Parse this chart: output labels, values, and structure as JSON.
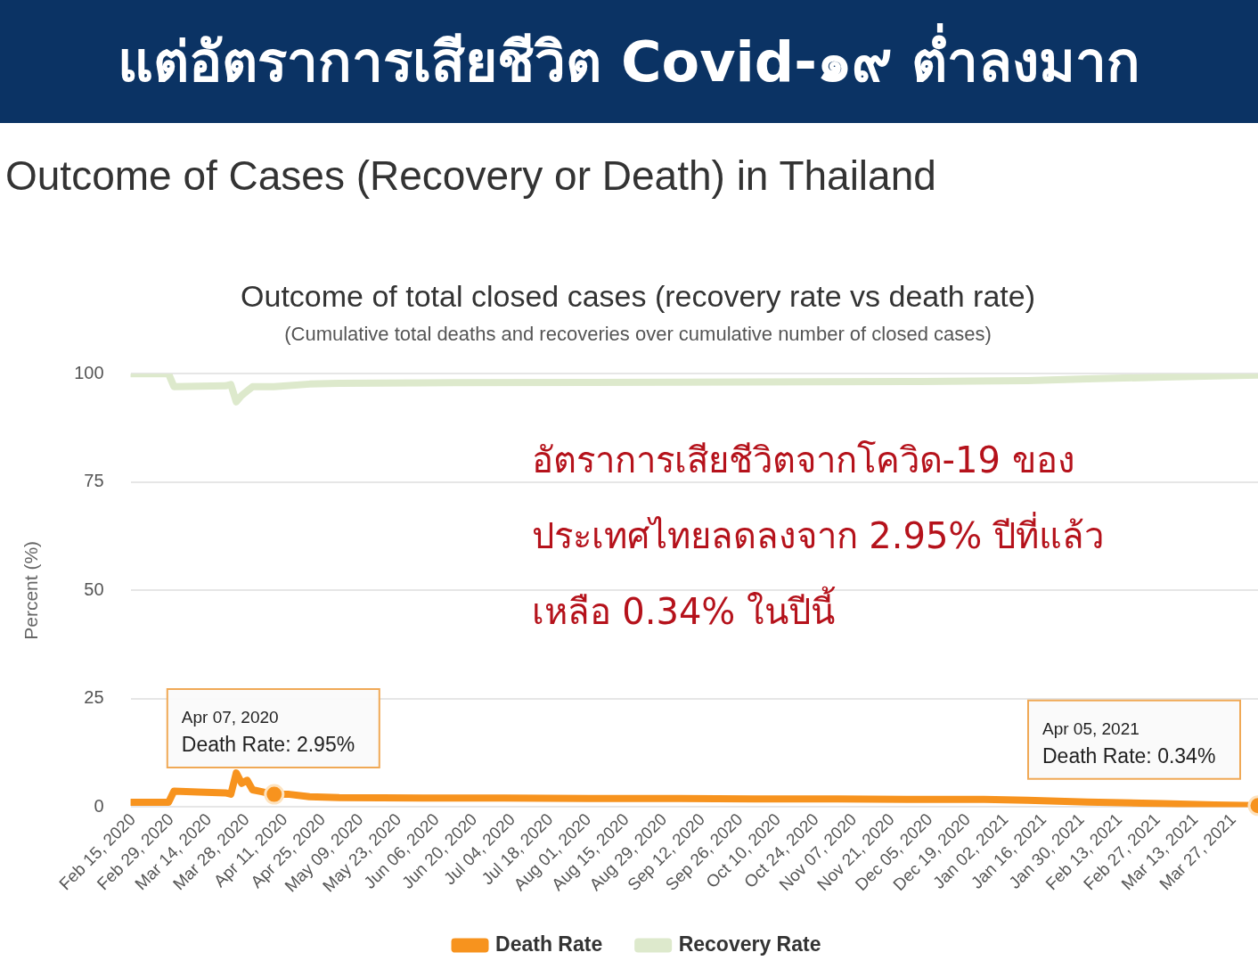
{
  "chart_data": {
    "type": "line",
    "title": "Outcome of total closed cases (recovery rate vs death rate)",
    "subtitle": "(Cumulative total deaths and recoveries over cumulative number of closed cases)",
    "ylabel": "Percent (%)",
    "annotations": [
      "แต่อัตราการเสียชีวิต Covid-๑๙ ต่ำลงมาก",
      "Outcome of Cases (Recovery or Death) in Thailand",
      "อัตราการเสียชีวิตจากโควิด-19 ของ\nประเทศไทยลดลงจาก 2.95% ปีที่แล้ว\nเหลือ 0.34% ในปีนี้",
      {
        "text": "Apr 07, 2020\nDeath Rate: 2.95%",
        "x": "2020-04-07",
        "y": 2.95
      },
      {
        "text": "Apr 05, 2021\nDeath Rate: 0.34%",
        "x": "2021-04-05",
        "y": 0.34
      }
    ],
    "series": [
      {
        "name": "Death Rate",
        "color": "#f7931e",
        "x": [
          "2020-02-14",
          "2020-02-28",
          "2020-03-01",
          "2020-03-10",
          "2020-03-20",
          "2020-03-22",
          "2020-03-24",
          "2020-03-26",
          "2020-03-28",
          "2020-03-30",
          "2020-04-02",
          "2020-04-05",
          "2020-04-07",
          "2020-04-12",
          "2020-04-20",
          "2020-05-01",
          "2020-06-01",
          "2020-07-01",
          "2020-08-01",
          "2020-09-01",
          "2020-10-01",
          "2020-11-01",
          "2020-12-01",
          "2020-12-25",
          "2021-01-10",
          "2021-02-01",
          "2021-03-01",
          "2021-03-20",
          "2021-04-05"
        ],
        "values": [
          1.1,
          1.1,
          3.7,
          3.5,
          3.3,
          3.0,
          7.9,
          5.5,
          6.2,
          4.0,
          3.6,
          3.2,
          2.95,
          3.0,
          2.4,
          2.2,
          2.1,
          2.1,
          2.0,
          2.0,
          1.9,
          1.9,
          1.8,
          1.8,
          1.6,
          1.2,
          0.8,
          0.5,
          0.34
        ]
      },
      {
        "name": "Recovery Rate",
        "color": "#dde9cc",
        "x": [
          "2020-02-14",
          "2020-02-28",
          "2020-03-01",
          "2020-03-20",
          "2020-03-22",
          "2020-03-24",
          "2020-03-26",
          "2020-03-28",
          "2020-03-30",
          "2020-04-07",
          "2020-04-20",
          "2020-05-01",
          "2020-06-01",
          "2020-08-01",
          "2020-10-01",
          "2020-12-01",
          "2021-01-10",
          "2021-02-01",
          "2021-03-01",
          "2021-03-20",
          "2021-04-05"
        ],
        "values": [
          100,
          100,
          97,
          97.2,
          97.5,
          93.5,
          95,
          96,
          97,
          97,
          97.6,
          97.8,
          97.9,
          98,
          98.1,
          98.2,
          98.4,
          98.8,
          99.2,
          99.5,
          99.7
        ]
      }
    ],
    "xlim": [
      "2020-02-14",
      "2021-04-05"
    ],
    "xticks": [
      {
        "value": "2020-02-15",
        "label": "Feb 15, 2020"
      },
      {
        "value": "2020-02-29",
        "label": "Feb 29, 2020"
      },
      {
        "value": "2020-03-14",
        "label": "Mar 14, 2020"
      },
      {
        "value": "2020-03-28",
        "label": "Mar 28, 2020"
      },
      {
        "value": "2020-04-11",
        "label": "Apr 11, 2020"
      },
      {
        "value": "2020-04-25",
        "label": "Apr 25, 2020"
      },
      {
        "value": "2020-05-09",
        "label": "May 09, 2020"
      },
      {
        "value": "2020-05-23",
        "label": "May 23, 2020"
      },
      {
        "value": "2020-06-06",
        "label": "Jun 06, 2020"
      },
      {
        "value": "2020-06-20",
        "label": "Jun 20, 2020"
      },
      {
        "value": "2020-07-04",
        "label": "Jul 04, 2020"
      },
      {
        "value": "2020-07-18",
        "label": "Jul 18, 2020"
      },
      {
        "value": "2020-08-01",
        "label": "Aug 01, 2020"
      },
      {
        "value": "2020-08-15",
        "label": "Aug 15, 2020"
      },
      {
        "value": "2020-08-29",
        "label": "Aug 29, 2020"
      },
      {
        "value": "2020-09-12",
        "label": "Sep 12, 2020"
      },
      {
        "value": "2020-09-26",
        "label": "Sep 26, 2020"
      },
      {
        "value": "2020-10-10",
        "label": "Oct 10, 2020"
      },
      {
        "value": "2020-10-24",
        "label": "Oct 24, 2020"
      },
      {
        "value": "2020-11-07",
        "label": "Nov 07, 2020"
      },
      {
        "value": "2020-11-21",
        "label": "Nov 21, 2020"
      },
      {
        "value": "2020-12-05",
        "label": "Dec 05, 2020"
      },
      {
        "value": "2020-12-19",
        "label": "Dec 19, 2020"
      },
      {
        "value": "2021-01-02",
        "label": "Jan 02, 2021"
      },
      {
        "value": "2021-01-16",
        "label": "Jan 16, 2021"
      },
      {
        "value": "2021-01-30",
        "label": "Jan 30, 2021"
      },
      {
        "value": "2021-02-13",
        "label": "Feb 13, 2021"
      },
      {
        "value": "2021-02-27",
        "label": "Feb 27, 2021"
      },
      {
        "value": "2021-03-13",
        "label": "Mar 13, 2021"
      },
      {
        "value": "2021-03-27",
        "label": "Mar 27, 2021"
      }
    ],
    "ylim": [
      0,
      100
    ],
    "yticks": [
      0,
      25,
      50,
      75,
      100
    ],
    "grid": "y",
    "legend": "bottom",
    "marker": "none",
    "line_style": "solid"
  }
}
